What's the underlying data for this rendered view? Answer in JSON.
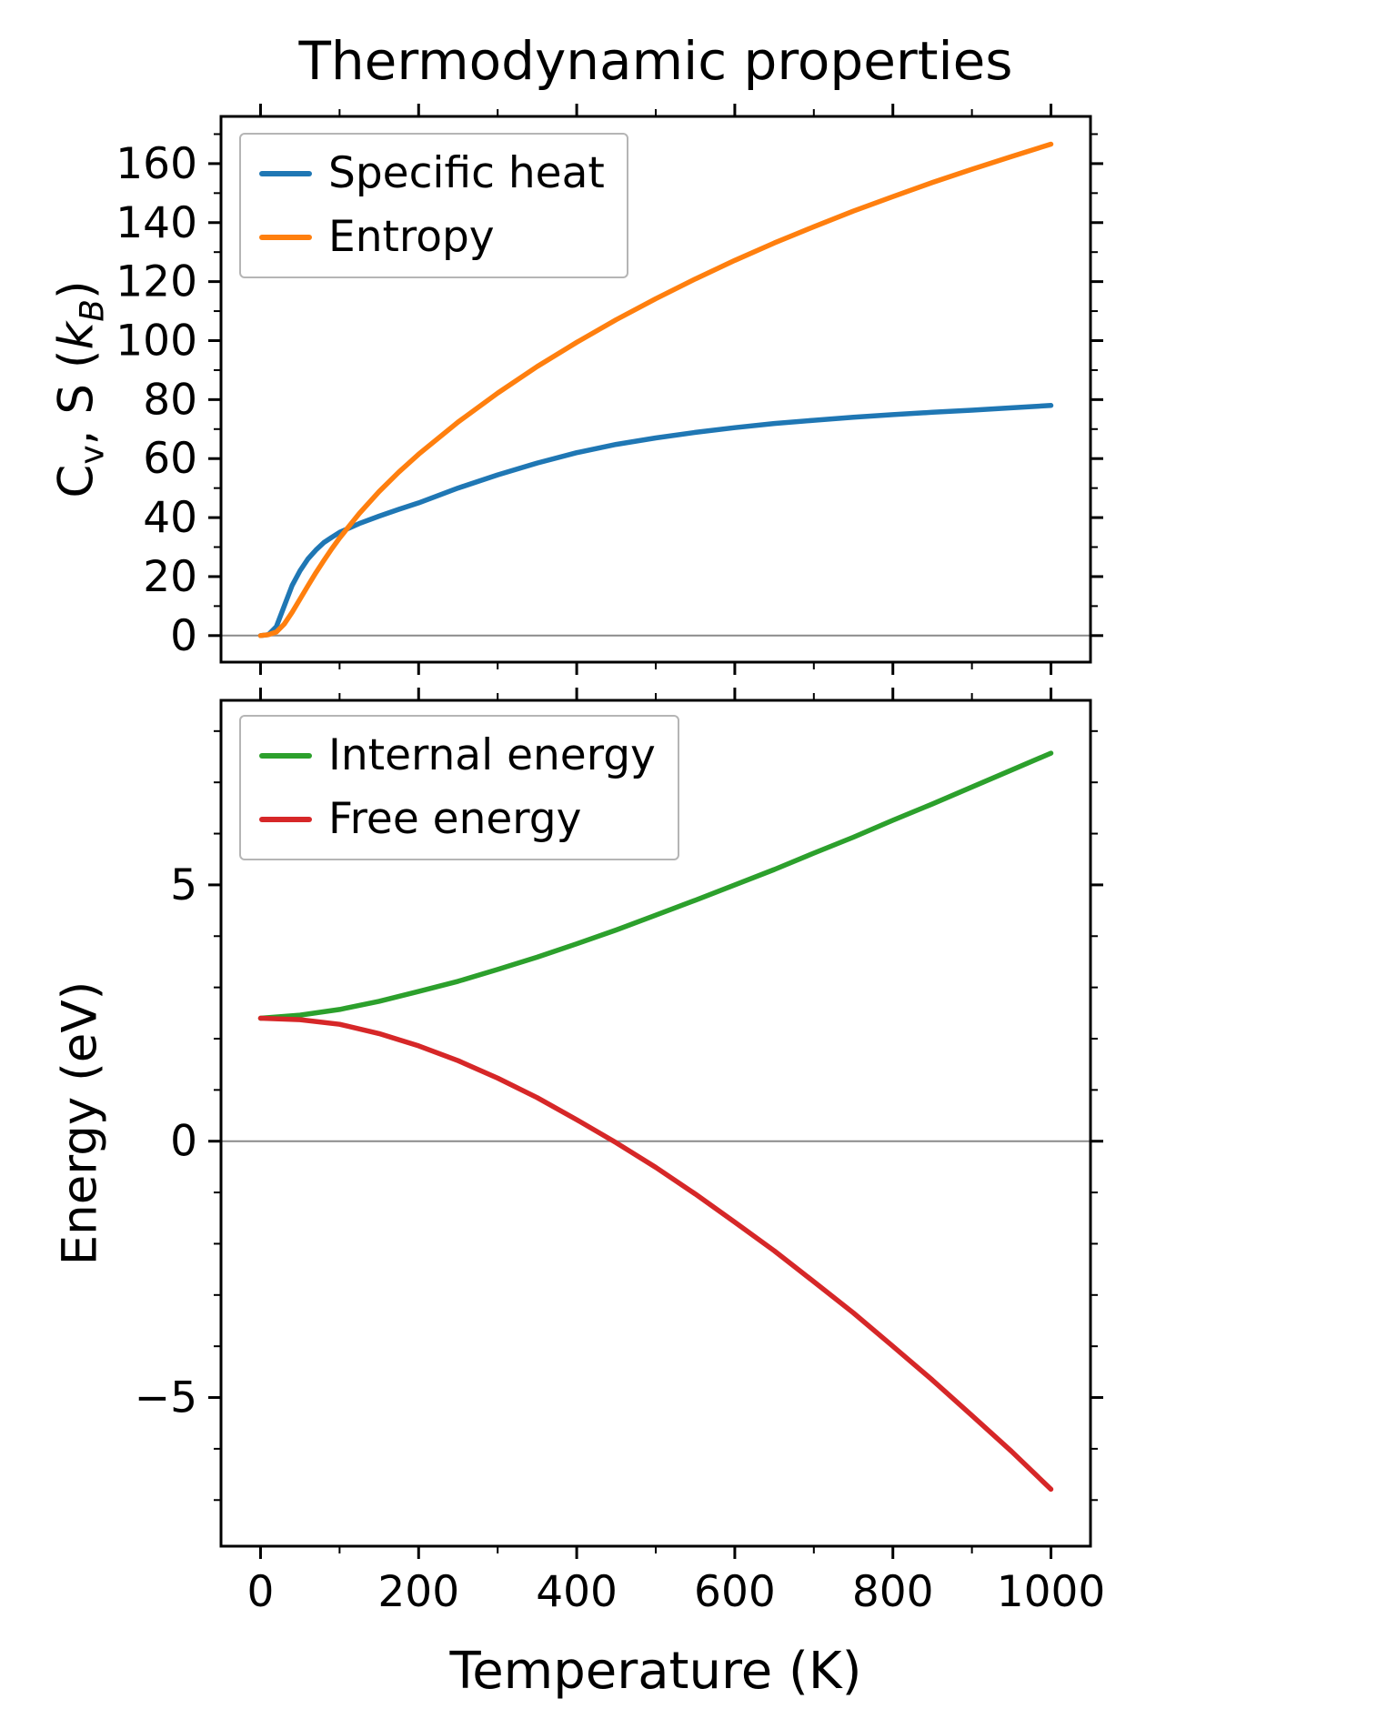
{
  "title": "Thermodynamic properties",
  "chart_data": [
    {
      "type": "line",
      "title": "Thermodynamic properties",
      "ylabel": "Cv, S (kB)",
      "ylabel_parts": {
        "c": "C",
        "v": "v",
        "mid": ", S (",
        "k": "k",
        "b": "B",
        "close": ")"
      },
      "xlabel": "",
      "xlim": [
        -50,
        1050
      ],
      "ylim": [
        -9,
        176
      ],
      "xticks": [
        0,
        200,
        400,
        600,
        800,
        1000
      ],
      "yticks": [
        0,
        20,
        40,
        60,
        80,
        100,
        120,
        140,
        160
      ],
      "grid": false,
      "zero_line": true,
      "legend_position": "upper left",
      "series": [
        {
          "name": "Specific heat",
          "color": "#1f77b4",
          "x": [
            0,
            10,
            20,
            30,
            40,
            50,
            60,
            70,
            80,
            90,
            100,
            125,
            150,
            175,
            200,
            250,
            300,
            350,
            400,
            450,
            500,
            550,
            600,
            650,
            700,
            750,
            800,
            850,
            900,
            950,
            1000
          ],
          "y": [
            0,
            0.3,
            3,
            10,
            17,
            22,
            26,
            29,
            31.5,
            33.3,
            35,
            38,
            40.5,
            42.8,
            45,
            50,
            54.5,
            58.5,
            62,
            64.8,
            67,
            68.9,
            70.5,
            71.9,
            73,
            74,
            74.9,
            75.7,
            76.4,
            77.2,
            78
          ]
        },
        {
          "name": "Entropy",
          "color": "#ff7f0e",
          "x": [
            0,
            10,
            20,
            30,
            40,
            50,
            60,
            70,
            80,
            90,
            100,
            125,
            150,
            175,
            200,
            250,
            300,
            350,
            400,
            450,
            500,
            550,
            600,
            650,
            700,
            750,
            800,
            850,
            900,
            950,
            1000
          ],
          "y": [
            0,
            0.3,
            1.2,
            3.9,
            7.9,
            12.4,
            16.9,
            21.3,
            25.4,
            29.4,
            33.1,
            41.4,
            48.8,
            55.4,
            61.5,
            72.4,
            82.2,
            91.2,
            99.4,
            107.1,
            114.2,
            120.9,
            127.2,
            133.1,
            138.6,
            143.9,
            148.8,
            153.6,
            158.1,
            162.4,
            166.6
          ]
        }
      ]
    },
    {
      "type": "line",
      "title": "",
      "ylabel": "Energy (eV)",
      "xlabel": "Temperature (K)",
      "xlim": [
        -50,
        1050
      ],
      "ylim": [
        -7.9,
        8.6
      ],
      "xticks": [
        0,
        200,
        400,
        600,
        800,
        1000
      ],
      "yticks": [
        -5,
        0,
        5
      ],
      "grid": false,
      "zero_line": true,
      "legend_position": "upper left",
      "series": [
        {
          "name": "Internal energy",
          "color": "#2ca02c",
          "x": [
            0,
            50,
            100,
            150,
            200,
            250,
            300,
            350,
            400,
            450,
            500,
            550,
            600,
            650,
            700,
            750,
            800,
            850,
            900,
            950,
            1000
          ],
          "y": [
            2.4,
            2.46,
            2.57,
            2.73,
            2.92,
            3.12,
            3.35,
            3.59,
            3.85,
            4.12,
            4.41,
            4.7,
            5.0,
            5.3,
            5.62,
            5.93,
            6.26,
            6.58,
            6.91,
            7.24,
            7.57
          ]
        },
        {
          "name": "Free energy",
          "color": "#d62728",
          "x": [
            0,
            50,
            100,
            150,
            200,
            250,
            300,
            350,
            400,
            450,
            500,
            550,
            600,
            650,
            700,
            750,
            800,
            850,
            900,
            950,
            1000
          ],
          "y": [
            2.4,
            2.37,
            2.28,
            2.1,
            1.86,
            1.57,
            1.23,
            0.85,
            0.42,
            -0.03,
            -0.51,
            -1.03,
            -1.58,
            -2.14,
            -2.74,
            -3.35,
            -4.0,
            -4.66,
            -5.35,
            -6.05,
            -6.79
          ]
        }
      ]
    }
  ]
}
